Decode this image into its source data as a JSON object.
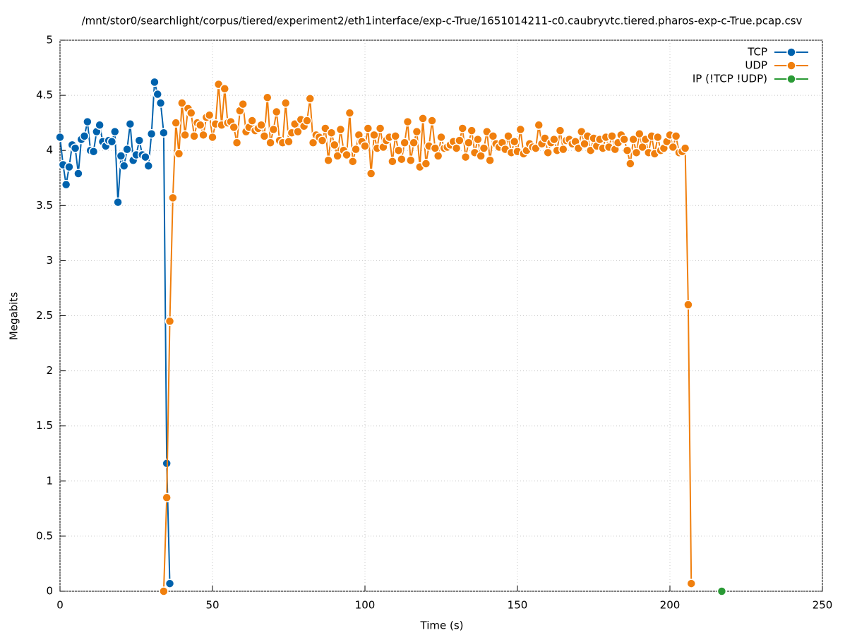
{
  "chart_data": {
    "type": "line",
    "title": "/mnt/stor0/searchlight/corpus/tiered/experiment2/eth1interface/exp-c-True/1651014211-c0.caubryvtc.tiered.pharos-exp-c-True.pcap.csv",
    "xlabel": "Time (s)",
    "ylabel": "Megabits",
    "xlim": [
      0,
      250
    ],
    "xticks": [
      0,
      50,
      100,
      150,
      200,
      250
    ],
    "ylim": [
      0,
      5
    ],
    "yticks": [
      0,
      0.5,
      1,
      1.5,
      2,
      2.5,
      3,
      3.5,
      4,
      4.5,
      5
    ],
    "grid": true,
    "legend": "top-right",
    "series": [
      {
        "name": "TCP",
        "color": "#0062ad",
        "x": [
          0,
          1,
          2,
          3,
          4,
          5,
          6,
          7,
          8,
          9,
          10,
          11,
          12,
          13,
          14,
          15,
          16,
          17,
          18,
          19,
          20,
          21,
          22,
          23,
          24,
          25,
          26,
          27,
          28,
          29,
          30,
          31,
          32,
          33,
          34,
          35,
          36
        ],
        "values": [
          4.12,
          3.87,
          3.69,
          3.85,
          4.05,
          4.02,
          3.79,
          4.1,
          4.13,
          4.26,
          4.0,
          3.99,
          4.17,
          4.23,
          4.08,
          4.04,
          4.09,
          4.08,
          4.17,
          3.53,
          3.95,
          3.86,
          4.01,
          4.24,
          3.91,
          3.96,
          4.09,
          3.96,
          3.94,
          3.86,
          4.15,
          4.62,
          4.51,
          4.43,
          4.16,
          1.16,
          0.07
        ]
      },
      {
        "name": "UDP",
        "color": "#f07f0d",
        "x": [
          34,
          35,
          36,
          37,
          38,
          39,
          40,
          41,
          42,
          43,
          44,
          45,
          46,
          47,
          48,
          49,
          50,
          51,
          52,
          53,
          54,
          55,
          56,
          57,
          58,
          59,
          60,
          61,
          62,
          63,
          64,
          65,
          66,
          67,
          68,
          69,
          70,
          71,
          72,
          73,
          74,
          75,
          76,
          77,
          78,
          79,
          80,
          81,
          82,
          83,
          84,
          85,
          86,
          87,
          88,
          89,
          90,
          91,
          92,
          93,
          94,
          95,
          96,
          97,
          98,
          99,
          100,
          101,
          102,
          103,
          104,
          105,
          106,
          107,
          108,
          109,
          110,
          111,
          112,
          113,
          114,
          115,
          116,
          117,
          118,
          119,
          120,
          121,
          122,
          123,
          124,
          125,
          126,
          127,
          128,
          129,
          130,
          131,
          132,
          133,
          134,
          135,
          136,
          137,
          138,
          139,
          140,
          141,
          142,
          143,
          144,
          145,
          146,
          147,
          148,
          149,
          150,
          151,
          152,
          153,
          154,
          155,
          156,
          157,
          158,
          159,
          160,
          161,
          162,
          163,
          164,
          165,
          166,
          167,
          168,
          169,
          170,
          171,
          172,
          173,
          174,
          175,
          176,
          177,
          178,
          179,
          180,
          181,
          182,
          183,
          184,
          185,
          186,
          187,
          188,
          189,
          190,
          191,
          192,
          193,
          194,
          195,
          196,
          197,
          198,
          199,
          200,
          201,
          202,
          203,
          204,
          205,
          206,
          207
        ],
        "values": [
          0,
          0.85,
          2.45,
          3.57,
          4.25,
          3.97,
          4.43,
          4.14,
          4.38,
          4.34,
          4.13,
          4.25,
          4.23,
          4.14,
          4.3,
          4.32,
          4.12,
          4.24,
          4.6,
          4.23,
          4.56,
          4.25,
          4.26,
          4.21,
          4.07,
          4.36,
          4.42,
          4.17,
          4.21,
          4.27,
          4.18,
          4.2,
          4.23,
          4.13,
          4.48,
          4.07,
          4.19,
          4.35,
          4.09,
          4.07,
          4.43,
          4.08,
          4.16,
          4.24,
          4.17,
          4.28,
          4.22,
          4.27,
          4.47,
          4.07,
          4.14,
          4.12,
          4.09,
          4.2,
          3.91,
          4.16,
          4.05,
          3.95,
          4.19,
          4.0,
          3.96,
          4.34,
          3.9,
          4.01,
          4.14,
          4.08,
          4.04,
          4.2,
          3.79,
          4.14,
          4.02,
          4.2,
          4.03,
          4.09,
          4.12,
          3.9,
          4.13,
          4.0,
          3.92,
          4.07,
          4.26,
          3.91,
          4.07,
          4.17,
          3.85,
          4.29,
          3.88,
          4.04,
          4.27,
          4.02,
          3.95,
          4.12,
          4.02,
          4.03,
          4.05,
          4.08,
          4.02,
          4.09,
          4.2,
          3.94,
          4.07,
          4.18,
          3.98,
          4.1,
          3.95,
          4.02,
          4.17,
          3.91,
          4.13,
          4.06,
          4.03,
          4.07,
          4.01,
          4.13,
          3.98,
          4.08,
          3.99,
          4.19,
          3.97,
          4.0,
          4.06,
          4.03,
          4.02,
          4.23,
          4.06,
          4.11,
          3.98,
          4.07,
          4.1,
          4.0,
          4.18,
          4.01,
          4.09,
          4.1,
          4.06,
          4.08,
          4.02,
          4.17,
          4.06,
          4.13,
          4.0,
          4.11,
          4.04,
          4.1,
          4.02,
          4.12,
          4.03,
          4.13,
          4.01,
          4.07,
          4.14,
          4.1,
          4.0,
          3.88,
          4.1,
          3.98,
          4.15,
          4.03,
          4.1,
          3.98,
          4.13,
          3.97,
          4.12,
          4.0,
          4.02,
          4.08,
          4.14,
          4.03,
          4.13,
          3.98,
          3.99,
          4.02,
          2.6,
          0.07
        ]
      },
      {
        "name": "IP (!TCP  !UDP)",
        "color": "#2a9a35",
        "x": [
          217
        ],
        "values": [
          0
        ]
      }
    ]
  }
}
